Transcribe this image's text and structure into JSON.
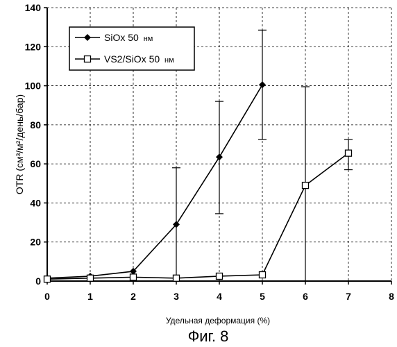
{
  "chart_data": {
    "type": "line",
    "xlabel": "Удельная деформация (%)",
    "ylabel": "OTR (см³/м²/день/бар)",
    "xlim": [
      0,
      8
    ],
    "ylim": [
      0,
      140
    ],
    "x_ticks": [
      "0",
      "1",
      "2",
      "3",
      "4",
      "5",
      "6",
      "7",
      "8"
    ],
    "y_ticks": [
      "0",
      "20",
      "40",
      "60",
      "80",
      "100",
      "120",
      "140"
    ],
    "grid": true,
    "legend_position": "top-left",
    "series": [
      {
        "name": "SiOx 50",
        "name_unit": "нм",
        "marker": "filled-diamond",
        "x": [
          0,
          1,
          2,
          3,
          4,
          5
        ],
        "y": [
          1.5,
          2.5,
          5,
          29,
          63.5,
          100.5
        ],
        "error_bars": [
          {
            "x": 3,
            "low": 0,
            "high": 58
          },
          {
            "x": 4,
            "low": 34.5,
            "high": 92
          },
          {
            "x": 5,
            "low": 72.5,
            "high": 128.5
          }
        ]
      },
      {
        "name": "VS2/SiOx 50",
        "name_unit": "нм",
        "marker": "open-square",
        "x": [
          0,
          1,
          2,
          3,
          4,
          5,
          6,
          7
        ],
        "y": [
          1,
          1.5,
          2,
          1.5,
          2.5,
          3.2,
          49,
          65.5
        ],
        "error_bars": [
          {
            "x": 6,
            "low": 0,
            "high": 99.5
          },
          {
            "x": 7,
            "low": 57,
            "high": 72.5
          }
        ]
      }
    ],
    "caption": "Фиг. 8"
  }
}
